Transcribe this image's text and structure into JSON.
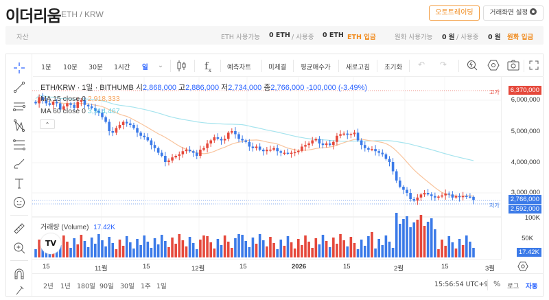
{
  "header": {
    "title": "이더리움",
    "pair": "ETH / KRW",
    "auto_trading_button": "오토트레이딩",
    "settings_button": "거래화면 설정"
  },
  "assets_bar": {
    "label": "자산",
    "eth_available_label": "ETH 사용가능",
    "eth_available_value": "0 ETH",
    "eth_in_use_label": "/ 사용중",
    "eth_in_use_value": "0 ETH",
    "eth_deposit": "ETH 입금",
    "krw_available_label": "원화 사용가능",
    "krw_available_value": "0 원",
    "krw_in_use_label": "/ 사용중",
    "krw_in_use_value": "0 원",
    "krw_deposit": "원화 입금"
  },
  "toolbar": {
    "intervals": [
      "1분",
      "10분",
      "30분",
      "1시간",
      "일"
    ],
    "selected_interval": "일",
    "buttons": [
      "예측차트",
      "미체결",
      "평균매수가",
      "새로고침",
      "초기화"
    ]
  },
  "left_tools": [
    "crosshair-icon",
    "trend-line-icon",
    "horizontal-lines-icon",
    "pattern-icon",
    "fib-icon",
    "brush-icon",
    "text-icon",
    "emoji-icon",
    "ruler-icon",
    "zoom-in-icon",
    "magnet-icon",
    "lock-icon"
  ],
  "chart_legend": {
    "symbol": "ETH/KRW · 1일 · BITHUMB",
    "open_label": "시",
    "open": "2,868,000",
    "high_label": "고",
    "high": "2,886,000",
    "low_label": "저",
    "low": "2,734,000",
    "close_label": "종",
    "close": "2,766,000",
    "change": "-100,000 (-3.49%)",
    "ma15_label": "MA 15 close 0",
    "ma15_value": "2,918,333",
    "ma60_label": "MA 60 close 0",
    "ma60_value": "3,914,467"
  },
  "price_axis": {
    "labels": [
      "6,000,000",
      "5,000,000",
      "4,000,000",
      "3,000,000"
    ],
    "high_marker_label": "고가",
    "high_marker_value": "6,370,000",
    "current_value": "2,766,000",
    "low_marker_label": "저가",
    "low_marker_value": "2,592,000",
    "up_color": "#e5483b",
    "down_color": "#3b7ae8"
  },
  "volume": {
    "title": "거래량 (Volume)",
    "value": "17.42K",
    "axis_labels": [
      "100K",
      "50K"
    ],
    "current_tag": "17.42K"
  },
  "time_axis": {
    "labels": [
      "15",
      "11월",
      "15",
      "12월",
      "15",
      "2026",
      "15",
      "2월",
      "15",
      "3월"
    ]
  },
  "bottom_bar": {
    "ranges": [
      "2년",
      "1년",
      "180일",
      "90일",
      "30일",
      "1주",
      "1일"
    ],
    "clock": "15:56:54 UTC+9",
    "percent": "%",
    "log": "로그",
    "auto": "자동"
  }
}
